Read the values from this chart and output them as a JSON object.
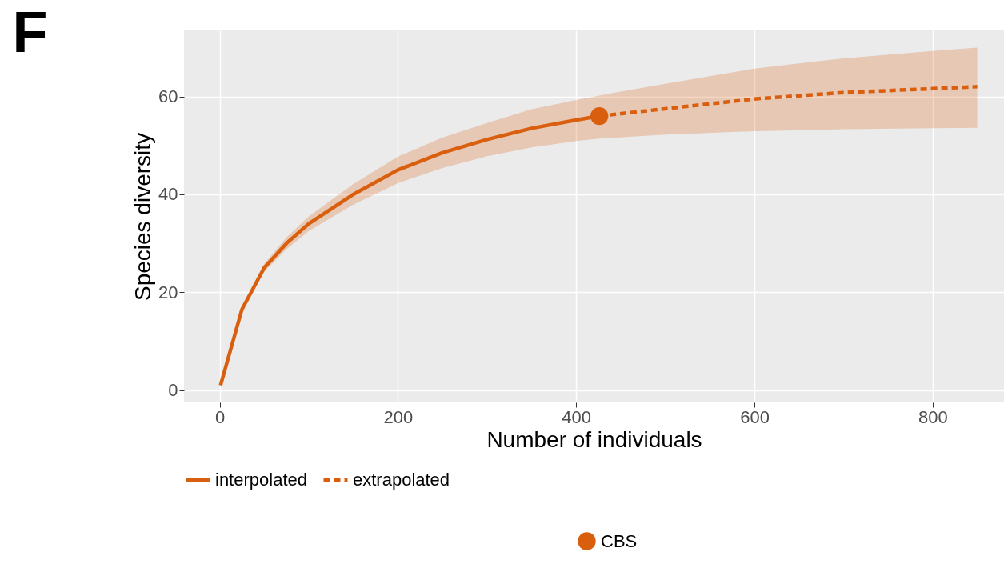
{
  "chart_data": {
    "type": "line",
    "title": "F",
    "xlabel": "Number of individuals",
    "ylabel": "Species diversity",
    "series": [
      {
        "name": "interpolated",
        "color": "#d95f0e",
        "line_style": "solid",
        "x": [
          1,
          25,
          50,
          75,
          100,
          150,
          200,
          250,
          300,
          350,
          400,
          426
        ],
        "values": [
          1,
          16.5,
          25,
          30,
          34,
          40,
          45,
          48.5,
          51.2,
          53.5,
          55.2,
          56
        ],
        "lower": [
          1,
          16,
          24.2,
          28.8,
          32.5,
          37.9,
          42.3,
          45.4,
          47.8,
          49.6,
          50.9,
          51.4
        ],
        "upper": [
          1,
          17,
          25.8,
          31.2,
          35.5,
          42.1,
          47.7,
          51.6,
          54.6,
          57.4,
          59.3,
          60.2
        ]
      },
      {
        "name": "extrapolated",
        "color": "#d95f0e",
        "line_style": "dashed",
        "x": [
          426,
          500,
          600,
          700,
          800,
          850
        ],
        "values": [
          56,
          57.5,
          59.5,
          60.8,
          61.6,
          62
        ],
        "lower": [
          51.4,
          52.2,
          52.9,
          53.3,
          53.5,
          53.6
        ],
        "upper": [
          60.2,
          62.6,
          65.7,
          67.8,
          69.3,
          70
        ]
      },
      {
        "name": "CBS",
        "type": "scatter",
        "color": "#d95f0e",
        "marker": "circle",
        "x": [
          426
        ],
        "values": [
          56
        ]
      }
    ],
    "xlim": [
      -40,
      880
    ],
    "ylim": [
      -2.5,
      73.5
    ],
    "xticks": [
      0,
      200,
      400,
      600,
      800
    ],
    "yticks": [
      0,
      20,
      40,
      60
    ],
    "grid": true,
    "legend": "bottom"
  }
}
